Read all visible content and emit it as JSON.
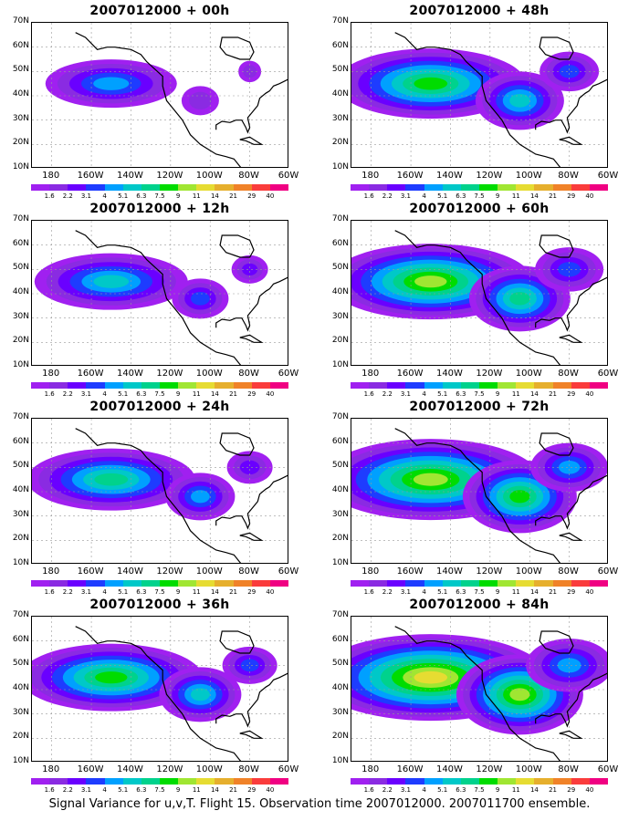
{
  "panels": [
    {
      "title": "2007012000 + 00h",
      "intensity": 0.15
    },
    {
      "title": "2007012000 + 48h",
      "intensity": 0.55
    },
    {
      "title": "2007012000 + 12h",
      "intensity": 0.3
    },
    {
      "title": "2007012000 + 60h",
      "intensity": 0.65
    },
    {
      "title": "2007012000 + 24h",
      "intensity": 0.4
    },
    {
      "title": "2007012000 + 72h",
      "intensity": 0.75
    },
    {
      "title": "2007012000 + 36h",
      "intensity": 0.5
    },
    {
      "title": "2007012000 + 84h",
      "intensity": 0.85
    }
  ],
  "lat_labels": [
    "70N",
    "60N",
    "50N",
    "40N",
    "30N",
    "20N",
    "10N"
  ],
  "lon_labels": [
    "180",
    "160W",
    "140W",
    "120W",
    "100W",
    "80W",
    "60W"
  ],
  "colorbar": {
    "labels": [
      "1.6",
      "2.2",
      "3.1",
      "4",
      "5.1",
      "6.3",
      "7.5",
      "9",
      "11",
      "14",
      "21",
      "29",
      "40"
    ],
    "colors": [
      "#a020f0",
      "#8a2be2",
      "#6a00ff",
      "#1e3cff",
      "#00a0ff",
      "#00c8c8",
      "#00d28c",
      "#00dc00",
      "#a0e632",
      "#e6dc32",
      "#e6af2d",
      "#f08228",
      "#fa3c3c",
      "#f00082"
    ]
  },
  "caption": "Signal Variance for u,v,T. Flight 15. Observation time 2007012000. 2007011700 ensemble."
}
